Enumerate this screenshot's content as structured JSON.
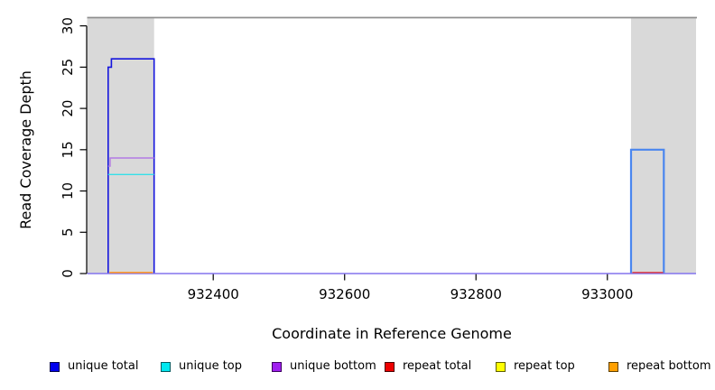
{
  "figure": {
    "xlabel": "Coordinate in Reference Genome",
    "ylabel": "Read Coverage Depth"
  },
  "legend": {
    "items": [
      {
        "label": "unique total",
        "color": "#0000ee",
        "border": "#00004a"
      },
      {
        "label": "unique top",
        "color": "#00e8f0",
        "border": "#005a60"
      },
      {
        "label": "unique bottom",
        "color": "#a020f0",
        "border": "#3c0060"
      },
      {
        "label": "repeat total",
        "color": "#ee0000",
        "border": "#4a0000"
      },
      {
        "label": "repeat top",
        "color": "#ffff00",
        "border": "#5f5f00"
      },
      {
        "label": "repeat bottom",
        "color": "#ffa000",
        "border": "#5f4000"
      }
    ]
  },
  "chart_data": {
    "type": "line",
    "title": "",
    "xlabel": "Coordinate in Reference Genome",
    "ylabel": "Read Coverage Depth",
    "xlim": [
      932208,
      933135
    ],
    "ylim": [
      0,
      31
    ],
    "x_ticks": [
      932400,
      932600,
      932800,
      933000
    ],
    "y_ticks": [
      0,
      5,
      10,
      15,
      20,
      25,
      30
    ],
    "grid": false,
    "legend_position": "bottom",
    "shaded_regions": [
      {
        "x0": 932208,
        "x1": 932310,
        "color": "#d9d9d9"
      },
      {
        "x0": 933036,
        "x1": 933135,
        "color": "#d9d9d9"
      }
    ],
    "top_boundary_line": {
      "y": 31,
      "color": "#8f8f8f"
    },
    "series": [
      {
        "name": "unique total",
        "color": "#1515dd",
        "polylines": [
          {
            "pts": [
              [
                932240,
                0
              ],
              [
                932240,
                25
              ],
              [
                932245,
                25
              ],
              [
                932245,
                26
              ],
              [
                932310,
                26
              ],
              [
                932310,
                0
              ]
            ],
            "width": 1.6
          },
          {
            "pts": [
              [
                933036,
                0
              ],
              [
                933036,
                15
              ],
              [
                933086,
                15
              ],
              [
                933086,
                0
              ]
            ],
            "color": "#4a86ef",
            "width": 2.2
          }
        ]
      },
      {
        "name": "unique top",
        "color": "#35dfe8",
        "polylines": [
          {
            "pts": [
              [
                932240,
                12
              ],
              [
                932310,
                12
              ]
            ],
            "width": 1.3
          }
        ]
      },
      {
        "name": "unique bottom",
        "color": "#a020f0",
        "polylines": [
          {
            "pts": [
              [
                932208,
                0
              ],
              [
                933135,
                0
              ]
            ],
            "color": "#8374ee",
            "width": 1.6
          },
          {
            "pts": [
              [
                932240,
                13
              ],
              [
                932243,
                13
              ],
              [
                932243,
                14
              ],
              [
                932310,
                14
              ]
            ],
            "color": "#b37ae4",
            "width": 1.4
          }
        ]
      },
      {
        "name": "repeat total",
        "color": "#e23b3b",
        "polylines": [
          {
            "pts": [
              [
                933038,
                0
              ],
              [
                933085,
                0
              ]
            ],
            "dy": -1.2,
            "width": 1.4
          }
        ]
      },
      {
        "name": "repeat top",
        "color": "#ffff00",
        "polylines": []
      },
      {
        "name": "repeat bottom",
        "color": "#ff9d2e",
        "polylines": [
          {
            "pts": [
              [
                932242,
                0
              ],
              [
                932308,
                0
              ]
            ],
            "dy": -1.2,
            "width": 1.6
          }
        ]
      }
    ]
  }
}
